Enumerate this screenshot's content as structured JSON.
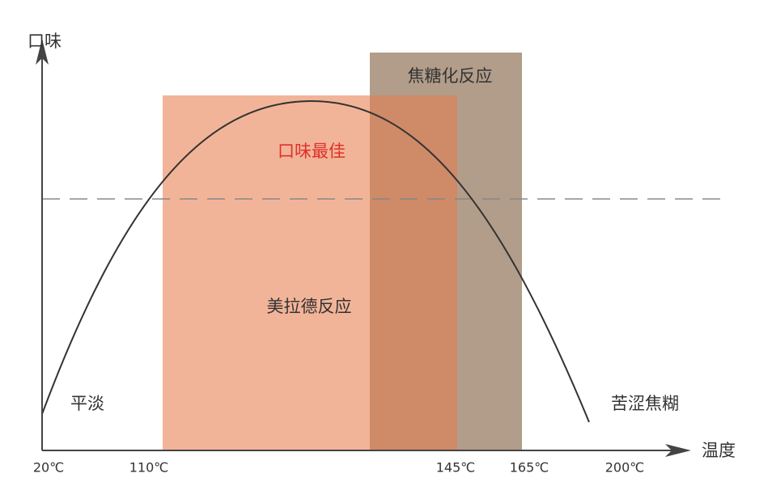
{
  "axes": {
    "y_label": "口味",
    "x_label": "温度",
    "x_ticks": [
      "20℃",
      "110℃",
      "145℃",
      "165℃",
      "200℃"
    ]
  },
  "regions": [
    {
      "label": "美拉德反应"
    },
    {
      "label": "焦糖化反应"
    }
  ],
  "annotations": {
    "optimal": "口味最佳",
    "bland": "平淡",
    "bitter": "苦涩焦糊"
  }
}
